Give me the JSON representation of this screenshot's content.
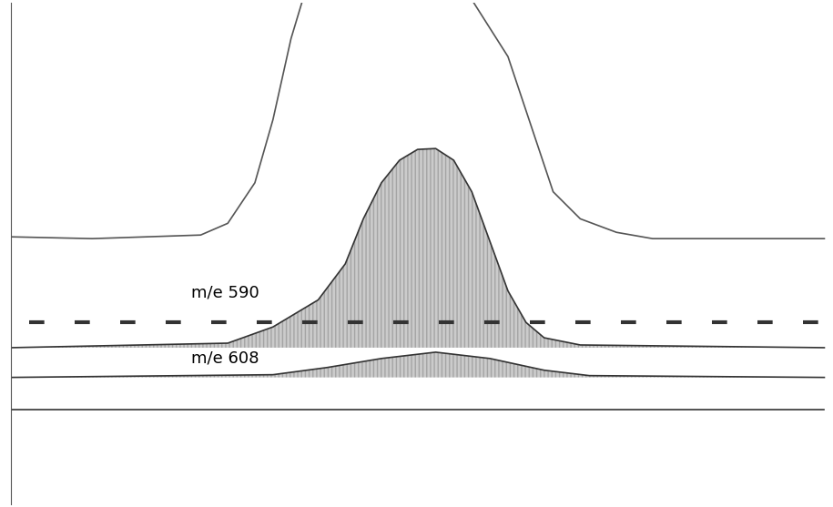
{
  "chart_data": {
    "type": "line",
    "tick_labels": false,
    "grid": false,
    "xlim": [
      10,
      915
    ],
    "ylim": [
      0,
      557
    ],
    "series": [
      {
        "type": "line",
        "color": "#555555",
        "line_style": "solid",
        "x": [
          10,
          100,
          220,
          250,
          280,
          300,
          320,
          332,
          420,
          522,
          560,
          590,
          610,
          640,
          680,
          720,
          800,
          910
        ],
        "values": [
          297,
          295,
          299,
          312,
          357,
          427,
          517,
          557,
          null,
          557,
          497,
          407,
          347,
          317,
          302,
          295,
          295,
          295
        ]
      },
      {
        "name": "m/e 590",
        "type": "area",
        "color": "#333333",
        "line_style": "solid",
        "x": [
          10,
          250,
          300,
          350,
          380,
          400,
          420,
          440,
          460,
          480,
          500,
          520,
          540,
          560,
          580,
          600,
          640,
          910
        ],
        "values": [
          174,
          179,
          197,
          227,
          267,
          317,
          357,
          382,
          394,
          395,
          382,
          347,
          292,
          237,
          202,
          185,
          177,
          174
        ]
      },
      {
        "name": "m/e 608",
        "type": "area",
        "color": "#333333",
        "line_style": "solid",
        "x": [
          10,
          300,
          360,
          420,
          480,
          540,
          600,
          650,
          910
        ],
        "values": [
          141,
          144,
          152,
          162,
          169,
          162,
          149,
          143,
          141
        ]
      },
      {
        "type": "line",
        "color": "#333333",
        "line_style": "solid",
        "x": [
          10,
          910
        ],
        "values": [
          105,
          105
        ]
      },
      {
        "type": "line",
        "color": "#333333",
        "line_style": "dashed",
        "x": [
          30,
          910
        ],
        "values": [
          202,
          202
        ]
      }
    ]
  }
}
